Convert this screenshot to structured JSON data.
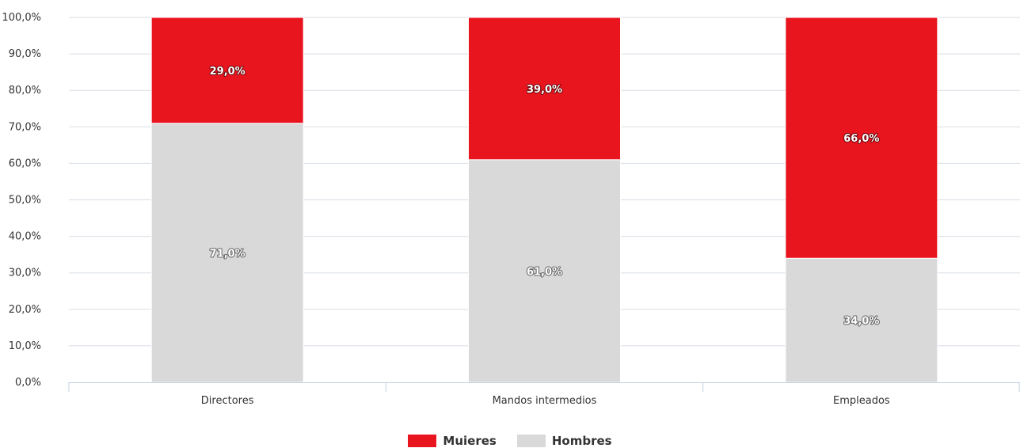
{
  "chart_data": {
    "type": "bar",
    "stacked": true,
    "categories": [
      "Directores",
      "Mandos intermedios",
      "Empleados"
    ],
    "series": [
      {
        "name": "Hombres",
        "values": [
          71.0,
          61.0,
          34.0
        ],
        "color": "#d9d9d9",
        "labels": [
          "71,0%",
          "61,0%",
          "34,0%"
        ]
      },
      {
        "name": "Mujeres",
        "values": [
          29.0,
          39.0,
          66.0
        ],
        "color": "#e8141e",
        "labels": [
          "29,0%",
          "39,0%",
          "66,0%"
        ]
      }
    ],
    "ylim": [
      0,
      100
    ],
    "yticks": [
      0,
      10,
      20,
      30,
      40,
      50,
      60,
      70,
      80,
      90,
      100
    ],
    "ytick_labels": [
      "0,0%",
      "10,0%",
      "20,0%",
      "30,0%",
      "40,0%",
      "50,0%",
      "60,0%",
      "70,0%",
      "80,0%",
      "90,0%",
      "100,0%"
    ],
    "grid": true,
    "legend_position": "bottom-center",
    "title": "",
    "xlabel": "",
    "ylabel": ""
  },
  "legend": {
    "items": [
      {
        "label": "Muieres",
        "color": "#e8141e"
      },
      {
        "label": "Hombres",
        "color": "#d9d9d9"
      }
    ]
  }
}
